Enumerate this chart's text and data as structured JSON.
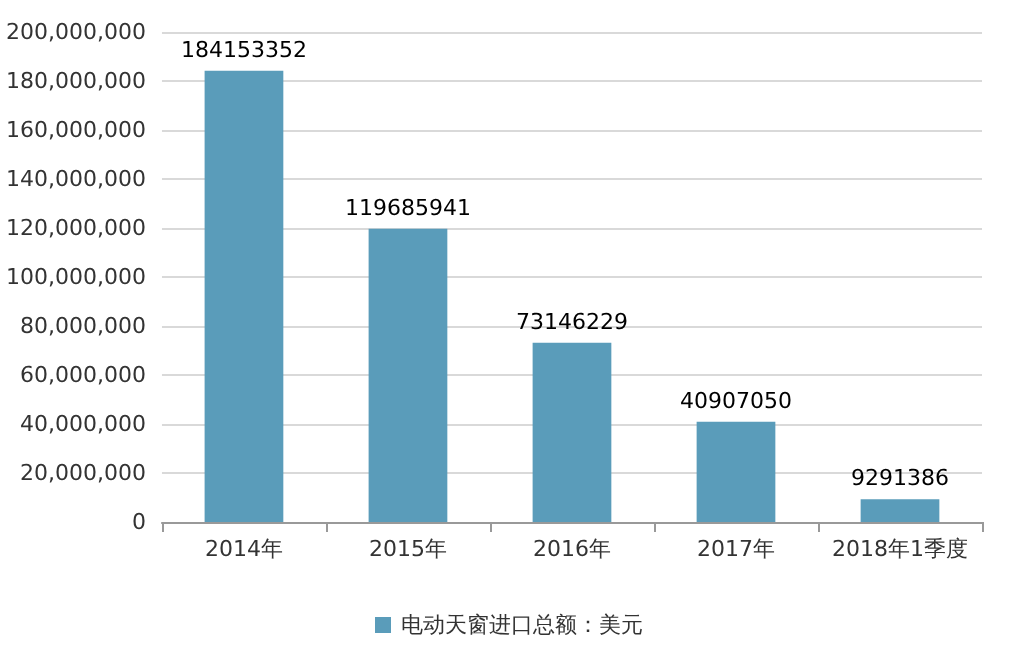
{
  "chart_data": {
    "type": "bar",
    "categories": [
      "2014年",
      "2015年",
      "2016年",
      "2017年",
      "2018年1季度"
    ],
    "series": [
      {
        "name": "电动天窗进口总额：美元",
        "color": "#5a9cba",
        "values": [
          184153352,
          119685941,
          73146229,
          40907050,
          9291386
        ]
      }
    ],
    "ylim": [
      0,
      200000000
    ],
    "yticks": [
      {
        "value": 0,
        "label": "0"
      },
      {
        "value": 20000000,
        "label": "20,000,000"
      },
      {
        "value": 40000000,
        "label": "40,000,000"
      },
      {
        "value": 60000000,
        "label": "60,000,000"
      },
      {
        "value": 80000000,
        "label": "80,000,000"
      },
      {
        "value": 100000000,
        "label": "100,000,000"
      },
      {
        "value": 120000000,
        "label": "120,000,000"
      },
      {
        "value": 140000000,
        "label": "140,000,000"
      },
      {
        "value": 160000000,
        "label": "160,000,000"
      },
      {
        "value": 180000000,
        "label": "180,000,000"
      },
      {
        "value": 200000000,
        "label": "200,000,000"
      }
    ],
    "grid": "y",
    "legend": "bottom",
    "data_labels": true
  }
}
